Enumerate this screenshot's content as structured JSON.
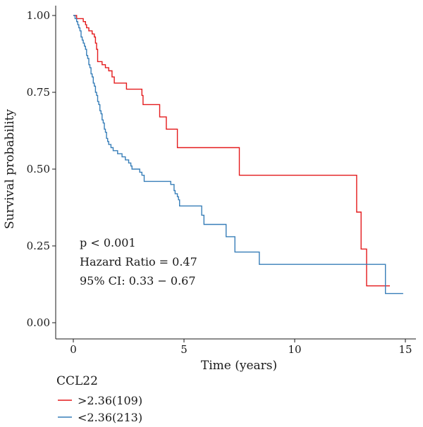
{
  "chart_data": {
    "type": "line",
    "subtype": "kaplan-meier step",
    "xlabel": "Time (years)",
    "ylabel": "Survival probability",
    "xlim": [
      0,
      15
    ],
    "ylim": [
      0,
      1
    ],
    "x_ticks": [
      0,
      5,
      10,
      15
    ],
    "y_ticks": [
      0,
      0.25,
      0.5,
      0.75,
      1
    ],
    "x_tick_labels": [
      "0",
      "5",
      "10",
      "15"
    ],
    "y_tick_labels": [
      "0.00",
      "0.25",
      "0.50",
      "0.75",
      "1.00"
    ],
    "grid": false,
    "legend": {
      "title": "CCL22",
      "position": "bottom-left"
    },
    "annotations": [
      "p < 0.001",
      "Hazard Ratio = 0.47",
      "95% CI: 0.33 − 0.67"
    ],
    "series": [
      {
        "name": ">2.36(109)",
        "color": "#e41a1c",
        "steps": [
          [
            0,
            1.0
          ],
          [
            0.15,
            0.99
          ],
          [
            0.45,
            0.98
          ],
          [
            0.55,
            0.97
          ],
          [
            0.6,
            0.96
          ],
          [
            0.7,
            0.95
          ],
          [
            0.85,
            0.94
          ],
          [
            0.95,
            0.93
          ],
          [
            1.0,
            0.91
          ],
          [
            1.05,
            0.89
          ],
          [
            1.1,
            0.85
          ],
          [
            1.3,
            0.84
          ],
          [
            1.45,
            0.83
          ],
          [
            1.6,
            0.82
          ],
          [
            1.75,
            0.8
          ],
          [
            1.85,
            0.78
          ],
          [
            2.4,
            0.76
          ],
          [
            3.1,
            0.74
          ],
          [
            3.15,
            0.71
          ],
          [
            3.9,
            0.67
          ],
          [
            4.2,
            0.63
          ],
          [
            4.7,
            0.57
          ],
          [
            7.5,
            0.48
          ],
          [
            12.8,
            0.36
          ],
          [
            13.0,
            0.24
          ],
          [
            13.25,
            0.12
          ],
          [
            14.3,
            0.12
          ]
        ]
      },
      {
        "name": "<2.36(213)",
        "color": "#377eb8",
        "steps": [
          [
            0,
            1.0
          ],
          [
            0.08,
            0.99
          ],
          [
            0.15,
            0.98
          ],
          [
            0.2,
            0.97
          ],
          [
            0.25,
            0.96
          ],
          [
            0.3,
            0.95
          ],
          [
            0.35,
            0.93
          ],
          [
            0.4,
            0.92
          ],
          [
            0.45,
            0.91
          ],
          [
            0.5,
            0.9
          ],
          [
            0.55,
            0.89
          ],
          [
            0.6,
            0.87
          ],
          [
            0.65,
            0.86
          ],
          [
            0.7,
            0.84
          ],
          [
            0.75,
            0.83
          ],
          [
            0.8,
            0.81
          ],
          [
            0.85,
            0.8
          ],
          [
            0.9,
            0.78
          ],
          [
            0.95,
            0.77
          ],
          [
            1.0,
            0.75
          ],
          [
            1.05,
            0.74
          ],
          [
            1.1,
            0.72
          ],
          [
            1.15,
            0.71
          ],
          [
            1.2,
            0.69
          ],
          [
            1.25,
            0.68
          ],
          [
            1.3,
            0.66
          ],
          [
            1.35,
            0.65
          ],
          [
            1.4,
            0.63
          ],
          [
            1.45,
            0.62
          ],
          [
            1.5,
            0.6
          ],
          [
            1.55,
            0.59
          ],
          [
            1.6,
            0.58
          ],
          [
            1.7,
            0.57
          ],
          [
            1.8,
            0.56
          ],
          [
            2.0,
            0.55
          ],
          [
            2.2,
            0.54
          ],
          [
            2.35,
            0.53
          ],
          [
            2.5,
            0.52
          ],
          [
            2.6,
            0.51
          ],
          [
            2.65,
            0.5
          ],
          [
            3.0,
            0.49
          ],
          [
            3.1,
            0.48
          ],
          [
            3.2,
            0.46
          ],
          [
            3.5,
            0.46
          ],
          [
            4.4,
            0.45
          ],
          [
            4.55,
            0.43
          ],
          [
            4.6,
            0.42
          ],
          [
            4.7,
            0.41
          ],
          [
            4.75,
            0.4
          ],
          [
            4.8,
            0.38
          ],
          [
            5.8,
            0.35
          ],
          [
            5.9,
            0.32
          ],
          [
            6.9,
            0.28
          ],
          [
            7.3,
            0.23
          ],
          [
            8.4,
            0.19
          ],
          [
            14.1,
            0.095
          ],
          [
            14.9,
            0.095
          ]
        ]
      }
    ]
  }
}
